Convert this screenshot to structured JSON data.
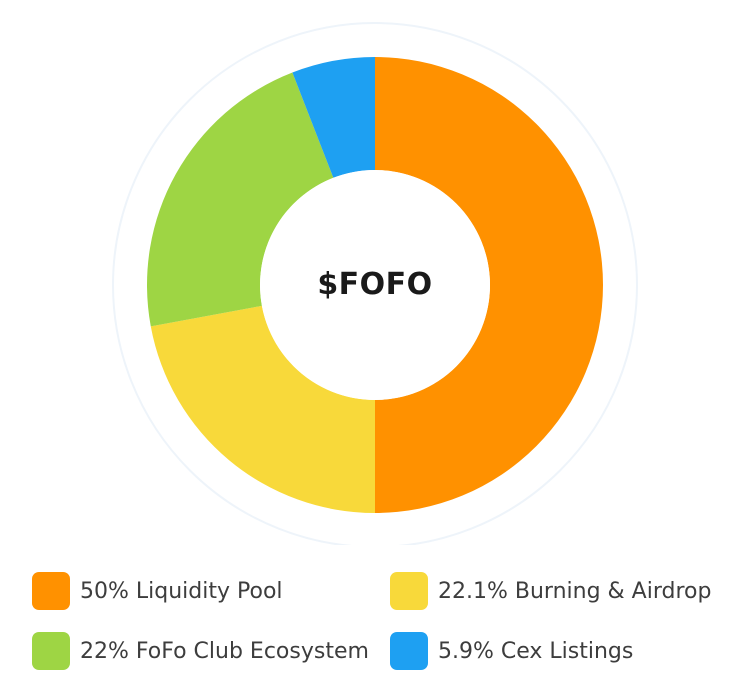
{
  "chart_data": {
    "type": "pie",
    "style": "donut",
    "title": "$FOFO",
    "legend_position": "bottom",
    "slices": [
      {
        "label": "Liquidity Pool",
        "value": 50,
        "color": "#FF9100"
      },
      {
        "label": "Burning & Airdrop",
        "value": 22.1,
        "color": "#F8D93A"
      },
      {
        "label": "FoFo Club Ecosystem",
        "value": 22,
        "color": "#9ED544"
      },
      {
        "label": "Cex Listings",
        "value": 5.9,
        "color": "#1EA0F2"
      }
    ]
  },
  "legend": [
    {
      "text": "50% Liquidity Pool",
      "color": "#FF9100"
    },
    {
      "text": "22.1% Burning & Airdrop",
      "color": "#F8D93A"
    },
    {
      "text": "22% FoFo Club Ecosystem",
      "color": "#9ED544"
    },
    {
      "text": "5.9% Cex Listings",
      "color": "#1EA0F2"
    }
  ],
  "colors": {
    "ring_outline": "#EEF4FA",
    "center_fill": "#FFFFFF",
    "title_text": "#1A1A1A",
    "legend_text": "#3D3D3D"
  }
}
